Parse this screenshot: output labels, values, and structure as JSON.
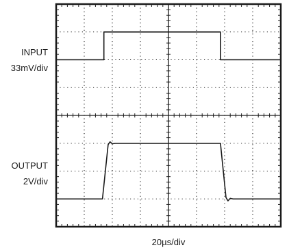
{
  "chart_data": {
    "type": "line",
    "title": "",
    "grid": true,
    "grid_divisions": {
      "x": 8,
      "y": 8
    },
    "xlabel": "20µs/div",
    "x_units": "div",
    "y_units": "div",
    "xlim": [
      0,
      8
    ],
    "ylim": [
      0,
      8
    ],
    "traces": [
      {
        "label_line1": "INPUT",
        "label_line2": "33mV/div",
        "color": "#1a1a1a",
        "points": [
          [
            0,
            6.0
          ],
          [
            1.7,
            6.0
          ],
          [
            1.7,
            7.0
          ],
          [
            5.85,
            7.0
          ],
          [
            5.85,
            6.0
          ],
          [
            8,
            6.0
          ]
        ]
      },
      {
        "label_line1": "OUTPUT",
        "label_line2": "2V/div",
        "color": "#1a1a1a",
        "points": [
          [
            0,
            1.0
          ],
          [
            1.65,
            1.0
          ],
          [
            1.85,
            2.95
          ],
          [
            1.92,
            3.05
          ],
          [
            2.0,
            2.98
          ],
          [
            2.1,
            3.0
          ],
          [
            5.85,
            3.0
          ],
          [
            6.05,
            1.05
          ],
          [
            6.12,
            0.93
          ],
          [
            6.2,
            1.02
          ],
          [
            6.3,
            1.0
          ],
          [
            8,
            1.0
          ]
        ]
      }
    ]
  }
}
